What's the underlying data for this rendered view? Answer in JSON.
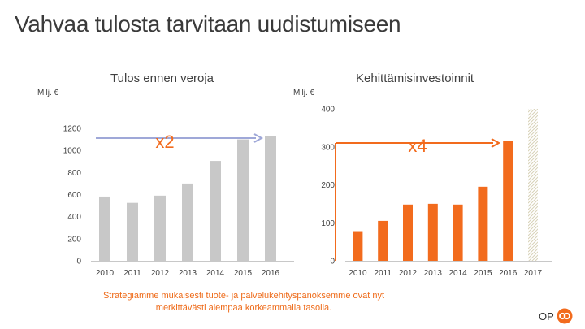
{
  "page": {
    "title": "Vahvaa tulosta tarvitaan uudistumiseen",
    "caption": "Strategiamme mukaisesti tuote- ja palvelukehityspanoksemme ovat nyt merkittävästi aiempaa korkeammalla tasolla.",
    "logo_text": "OP"
  },
  "colors": {
    "gray_bar": "#c8c8c8",
    "orange_bar": "#f26b1d",
    "gray_arrow": "#9fa8d8",
    "axis": "#c8c8c8",
    "text": "#404040"
  },
  "chart_data": [
    {
      "id": "left",
      "type": "bar",
      "title": "Tulos ennen veroja",
      "ylabel": "Milj. €",
      "categories": [
        "2010",
        "2011",
        "2012",
        "2013",
        "2014",
        "2015",
        "2016"
      ],
      "values": [
        582,
        525,
        590,
        700,
        905,
        1100,
        1130
      ],
      "yticks": [
        0,
        200,
        400,
        600,
        800,
        1000,
        1200
      ],
      "ylim": [
        0,
        1200
      ],
      "annotation": "x2",
      "bar_color": "#c8c8c8"
    },
    {
      "id": "right",
      "type": "bar",
      "title": "Kehittämisinvestoinnit",
      "ylabel": "Milj. €",
      "categories": [
        "2010",
        "2011",
        "2012",
        "2013",
        "2014",
        "2015",
        "2016",
        "2017"
      ],
      "values": [
        78,
        105,
        148,
        150,
        148,
        195,
        315,
        400
      ],
      "last_bar_estimate": true,
      "yticks": [
        0,
        100,
        200,
        300,
        400
      ],
      "ylim": [
        0,
        400
      ],
      "annotation": "x4",
      "bar_color": "#f26b1d"
    }
  ]
}
